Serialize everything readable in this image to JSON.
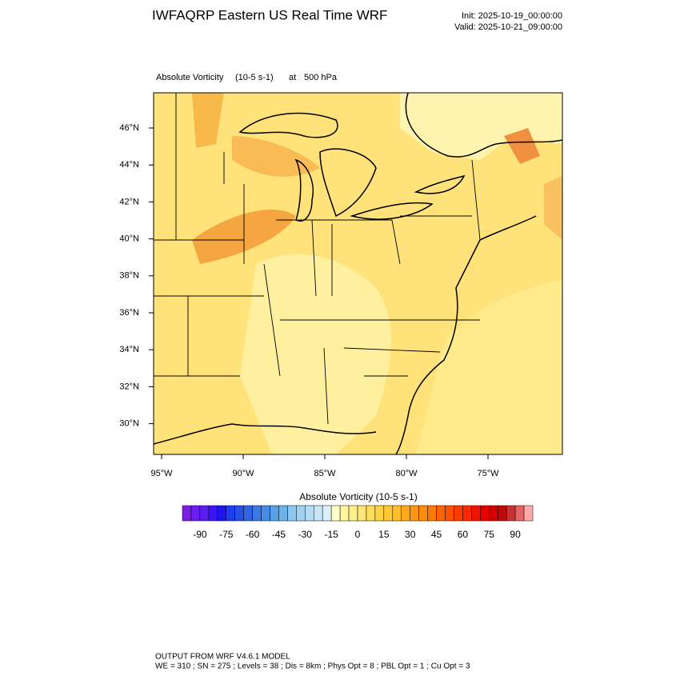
{
  "header": {
    "title": "IWFAQRP Eastern US Real Time WRF",
    "init": "Init: 2025-10-19_00:00:00",
    "valid": "Valid: 2025-10-21_09:00:00"
  },
  "map": {
    "field": "Absolute Vorticity",
    "units": "(10-5 s-1)",
    "level_prefix": "at",
    "level": "500 hPa",
    "lat_labels": [
      "46°N",
      "44°N",
      "42°N",
      "40°N",
      "38°N",
      "36°N",
      "34°N",
      "32°N",
      "30°N"
    ],
    "lon_labels": [
      "95°W",
      "90°W",
      "85°W",
      "80°W",
      "75°W"
    ]
  },
  "colorbar": {
    "title": "Absolute Vorticity  (10-5 s-1)",
    "lim": [
      -100,
      100
    ],
    "ticks": [
      -90,
      -75,
      -60,
      -45,
      -30,
      -15,
      0,
      15,
      30,
      45,
      60,
      75,
      90
    ],
    "colors": [
      "#7a1ee6",
      "#6a1ef0",
      "#5a1ef5",
      "#3c14f5",
      "#1e14f0",
      "#1e3cf0",
      "#2850e6",
      "#3264e6",
      "#3c78e6",
      "#468ce6",
      "#5aa0e6",
      "#6eb4ec",
      "#8cc8f0",
      "#a0d2f0",
      "#b4dcf5",
      "#c8e6f8",
      "#dcf0fa",
      "#ffffc8",
      "#fff5a0",
      "#fff08c",
      "#ffe678",
      "#ffdc5a",
      "#ffd246",
      "#ffc832",
      "#ffbe28",
      "#ffaa1e",
      "#ff9614",
      "#ff8c0a",
      "#ff7800",
      "#ff6400",
      "#ff5000",
      "#ff3c00",
      "#ff2800",
      "#f01400",
      "#e60000",
      "#d20000",
      "#be0a0a",
      "#c83232",
      "#e66464",
      "#ffaaaa"
    ]
  },
  "footer": {
    "line1": "OUTPUT FROM WRF V4.6.1 MODEL",
    "line2": "WE = 310 ; SN = 275 ; Levels = 38 ; Dis = 8km ; Phys Opt = 8 ; PBL Opt = 1 ; Cu Opt = 3"
  }
}
